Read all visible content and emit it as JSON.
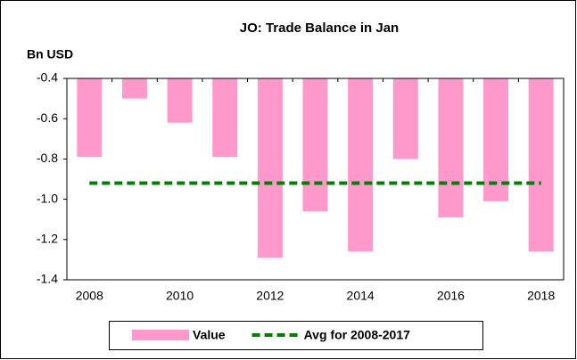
{
  "chart_data": {
    "type": "bar",
    "title": "JO: Trade Balance in Jan",
    "y_label": "Bn USD",
    "categories": [
      "2008",
      null,
      "2010",
      null,
      "2012",
      null,
      "2014",
      null,
      "2016",
      null,
      "2018"
    ],
    "series": [
      {
        "name": "Value",
        "type": "bar",
        "color": "#ff99cc",
        "values": [
          -0.79,
          -0.5,
          -0.62,
          -0.79,
          -1.29,
          -1.06,
          -1.26,
          -0.8,
          -1.09,
          -1.01,
          -1.26
        ]
      },
      {
        "name": "Avg for 2008-2017",
        "type": "line",
        "dash": true,
        "color": "#008000",
        "values": [
          -0.92,
          -0.92,
          -0.92,
          -0.92,
          -0.92,
          -0.92,
          -0.92,
          -0.92,
          -0.92,
          -0.92,
          -0.92
        ]
      }
    ],
    "ylim": [
      -1.4,
      -0.4
    ],
    "yticks": [
      -0.4,
      -0.6,
      -0.8,
      {
        "value": -1.0,
        "label": "-1.0"
      },
      -1.2,
      -1.4
    ],
    "legend": "bottom"
  }
}
